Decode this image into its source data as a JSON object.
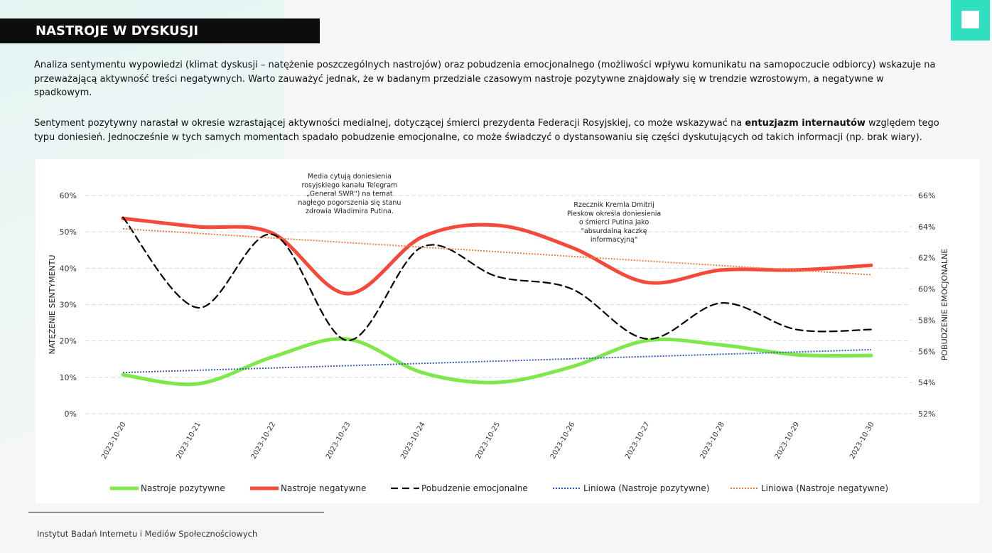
{
  "header": {
    "title": "NASTROJE W DYSKUSJI"
  },
  "paragraphs": {
    "first": "Analiza sentymentu wypowiedzi (klimat dyskusji – natężenie poszczególnych nastrojów) oraz pobudzenia emocjonalnego (możliwości wpływu komunikatu na samopoczucie odbiorcy) wskazuje na przeważającą aktywność treści negatywnych. Warto zauważyć jednak, że w badanym przedziale czasowym nastroje pozytywne znajdowały się w trendzie wzrostowym, a negatywne w spadkowym.",
    "second": {
      "before": "Sentyment pozytywny narastał w okresie wzrastającej aktywności medialnej, dotyczącej śmierci prezydenta Federacji Rosyjskiej, co może wskazywać na ",
      "bold": "entuzjazm internautów",
      "after": " względem tego typu doniesień. Jednocześnie w tych samych momentach spadało pobudzenie emocjonalne, co może świadczyć o dystansowaniu się części dyskutujących od takich informacji (np. brak wiary)."
    }
  },
  "footer": {
    "text": "Instytut Badań Internetu i Mediów Społecznościowych"
  },
  "chart_data": {
    "type": "line",
    "ylabel": "NATĘŻENIE SENTYMENTU",
    "y2label": "POBUDZENIE EMOCJONALNE",
    "categories": [
      "2023-10-20",
      "2023-10-21",
      "2023-10-22",
      "2023-10-23",
      "2023-10-24",
      "2023-10-25",
      "2023-10-26",
      "2023-10-27",
      "2023-10-28",
      "2023-10-29",
      "2023-10-30"
    ],
    "ylim": [
      0,
      60
    ],
    "yticks": [
      {
        "value": 0,
        "label": "0%"
      },
      {
        "value": 10,
        "label": "10%"
      },
      {
        "value": 20,
        "label": "20%"
      },
      {
        "value": 30,
        "label": "30%"
      },
      {
        "value": 40,
        "label": "40%"
      },
      {
        "value": 50,
        "label": "50%"
      },
      {
        "value": 60,
        "label": "60%"
      }
    ],
    "y2lim": [
      52,
      66
    ],
    "y2ticks": [
      {
        "value": 52,
        "label": "52%"
      },
      {
        "value": 54,
        "label": "54%"
      },
      {
        "value": 56,
        "label": "56%"
      },
      {
        "value": 58,
        "label": "58%"
      },
      {
        "value": 60,
        "label": "60%"
      },
      {
        "value": 62,
        "label": "62%"
      },
      {
        "value": 64,
        "label": "64%"
      },
      {
        "value": 66,
        "label": "66%"
      }
    ],
    "grid": true,
    "series": [
      {
        "name": "Nastroje pozytywne",
        "color": "#7ee84a",
        "values": [
          10.7,
          8.2,
          15.6,
          20.5,
          11.3,
          8.6,
          12.9,
          20.1,
          18.9,
          16.2,
          16.0
        ]
      },
      {
        "name": "Nastroje negatywne",
        "color": "#f5493a",
        "values": [
          53.7,
          51.4,
          49.6,
          33.0,
          48.6,
          51.8,
          45.7,
          36.1,
          39.5,
          39.5,
          40.8
        ]
      },
      {
        "name": "Pobudzenie emocjonalne",
        "color": "#000000",
        "axis": "y2",
        "dash": "dashed",
        "values": [
          64.6,
          58.8,
          63.5,
          56.7,
          62.7,
          60.8,
          60.0,
          56.8,
          59.1,
          57.4,
          57.4
        ]
      },
      {
        "name": "Liniowa (Nastroje pozytywne)",
        "color": "#3a5bc7",
        "dash": "dotted",
        "trendline_of": 0
      },
      {
        "name": "Liniowa (Nastroje negatywne)",
        "color": "#f08040",
        "dash": "dotted",
        "trendline_of": 1
      }
    ],
    "annotations": [
      {
        "at": 3,
        "lines": [
          "Media cytują doniesienia",
          "rosyjskiego kanału Telegram",
          "„Generał SWR\") na temat",
          "nagłego pogorszenia się stanu",
          "zdrowia Władimira Putina."
        ]
      },
      {
        "at": 7,
        "lines": [
          "Rzecznik Kremla Dmitrij",
          "Pieskow określa doniesienia",
          "o śmierci Putina jako",
          "\"absurdalną kaczkę",
          "informacyjną\""
        ]
      }
    ]
  }
}
